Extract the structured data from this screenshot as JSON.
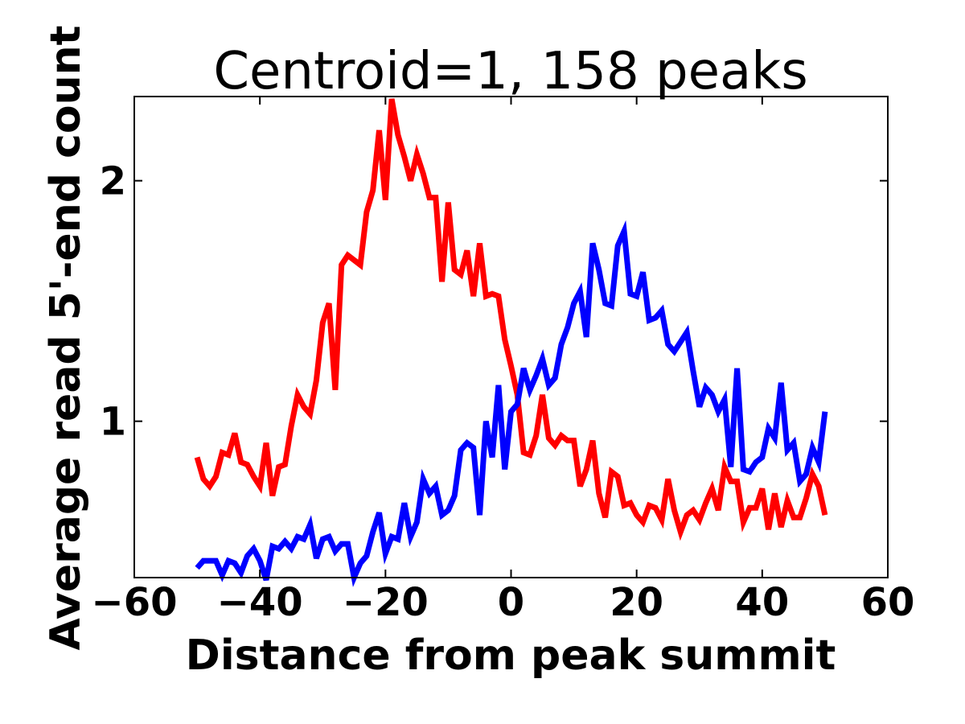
{
  "chart_data": {
    "type": "line",
    "title": "Centroid=1, 158 peaks",
    "xlabel": "Distance from peak summit",
    "ylabel": "Average read 5'-end count",
    "xlim": [
      -60,
      60
    ],
    "ylim": [
      0.35,
      2.35
    ],
    "xticks": [
      -60,
      -40,
      -20,
      0,
      20,
      40,
      60
    ],
    "xtick_labels": [
      "−60",
      "−40",
      "−20",
      "0",
      "20",
      "40",
      "60"
    ],
    "yticks": [
      1,
      2
    ],
    "ytick_labels": [
      "1",
      "2"
    ],
    "grid": false,
    "series": [
      {
        "name": "red",
        "color": "#ff0000",
        "x": [
          -50,
          -49,
          -48,
          -47,
          -46,
          -45,
          -44,
          -43,
          -42,
          -41,
          -40,
          -39,
          -38,
          -37,
          -36,
          -35,
          -34,
          -33,
          -32,
          -31,
          -30,
          -29,
          -28,
          -27,
          -26,
          -25,
          -24,
          -23,
          -22,
          -21,
          -20,
          -19,
          -18,
          -17,
          -16,
          -15,
          -14,
          -13,
          -12,
          -11,
          -10,
          -9,
          -8,
          -7,
          -6,
          -5,
          -4,
          -3,
          -2,
          -1,
          0,
          1,
          2,
          3,
          4,
          5,
          6,
          7,
          8,
          9,
          10,
          11,
          12,
          13,
          14,
          15,
          16,
          17,
          18,
          19,
          20,
          21,
          22,
          23,
          24,
          25,
          26,
          27,
          28,
          29,
          30,
          31,
          32,
          33,
          34,
          35,
          36,
          37,
          38,
          39,
          40,
          41,
          42,
          43,
          44,
          45,
          46,
          47,
          48,
          49,
          50
        ],
        "values": [
          0.85,
          0.76,
          0.73,
          0.77,
          0.87,
          0.86,
          0.95,
          0.83,
          0.82,
          0.77,
          0.73,
          0.91,
          0.69,
          0.81,
          0.82,
          0.98,
          1.11,
          1.06,
          1.03,
          1.17,
          1.41,
          1.49,
          1.13,
          1.65,
          1.69,
          1.67,
          1.65,
          1.87,
          1.96,
          2.21,
          1.92,
          2.34,
          2.19,
          2.1,
          2.0,
          2.11,
          2.03,
          1.93,
          1.93,
          1.58,
          1.91,
          1.63,
          1.61,
          1.71,
          1.52,
          1.74,
          1.52,
          1.53,
          1.52,
          1.34,
          1.23,
          1.11,
          0.87,
          0.86,
          0.94,
          1.11,
          0.93,
          0.9,
          0.94,
          0.92,
          0.92,
          0.73,
          0.8,
          0.92,
          0.7,
          0.6,
          0.79,
          0.77,
          0.65,
          0.66,
          0.61,
          0.58,
          0.65,
          0.64,
          0.59,
          0.76,
          0.63,
          0.54,
          0.61,
          0.63,
          0.59,
          0.66,
          0.72,
          0.63,
          0.81,
          0.75,
          0.75,
          0.58,
          0.64,
          0.64,
          0.72,
          0.55,
          0.7,
          0.56,
          0.67,
          0.6,
          0.6,
          0.68,
          0.78,
          0.73,
          0.61
        ]
      },
      {
        "name": "blue",
        "color": "#0000ff",
        "x": [
          -50,
          -49,
          -48,
          -47,
          -46,
          -45,
          -44,
          -43,
          -42,
          -41,
          -40,
          -39,
          -38,
          -37,
          -36,
          -35,
          -34,
          -33,
          -32,
          -31,
          -30,
          -29,
          -28,
          -27,
          -26,
          -25,
          -24,
          -23,
          -22,
          -21,
          -20,
          -19,
          -18,
          -17,
          -16,
          -15,
          -14,
          -13,
          -12,
          -11,
          -10,
          -9,
          -8,
          -7,
          -6,
          -5,
          -4,
          -3,
          -2,
          -1,
          0,
          1,
          2,
          3,
          4,
          5,
          6,
          7,
          8,
          9,
          10,
          11,
          12,
          13,
          14,
          15,
          16,
          17,
          18,
          19,
          20,
          21,
          22,
          23,
          24,
          25,
          26,
          27,
          28,
          29,
          30,
          31,
          32,
          33,
          34,
          35,
          36,
          37,
          38,
          39,
          40,
          41,
          42,
          43,
          44,
          45,
          46,
          47,
          48,
          49,
          50
        ],
        "values": [
          0.39,
          0.42,
          0.42,
          0.42,
          0.36,
          0.42,
          0.41,
          0.37,
          0.44,
          0.47,
          0.42,
          0.34,
          0.48,
          0.47,
          0.5,
          0.47,
          0.52,
          0.51,
          0.57,
          0.43,
          0.51,
          0.52,
          0.46,
          0.49,
          0.49,
          0.35,
          0.41,
          0.44,
          0.54,
          0.62,
          0.45,
          0.52,
          0.51,
          0.66,
          0.52,
          0.58,
          0.76,
          0.7,
          0.73,
          0.61,
          0.63,
          0.69,
          0.88,
          0.91,
          0.89,
          0.61,
          1.0,
          0.85,
          1.15,
          0.8,
          1.04,
          1.07,
          1.22,
          1.13,
          1.19,
          1.26,
          1.15,
          1.18,
          1.32,
          1.39,
          1.49,
          1.54,
          1.35,
          1.74,
          1.63,
          1.49,
          1.48,
          1.73,
          1.79,
          1.53,
          1.52,
          1.62,
          1.42,
          1.43,
          1.46,
          1.32,
          1.29,
          1.33,
          1.37,
          1.21,
          1.06,
          1.14,
          1.11,
          1.04,
          1.09,
          0.81,
          1.22,
          0.8,
          0.79,
          0.83,
          0.85,
          0.97,
          0.93,
          1.16,
          0.88,
          0.91,
          0.75,
          0.78,
          0.89,
          0.83,
          1.04
        ]
      }
    ]
  }
}
